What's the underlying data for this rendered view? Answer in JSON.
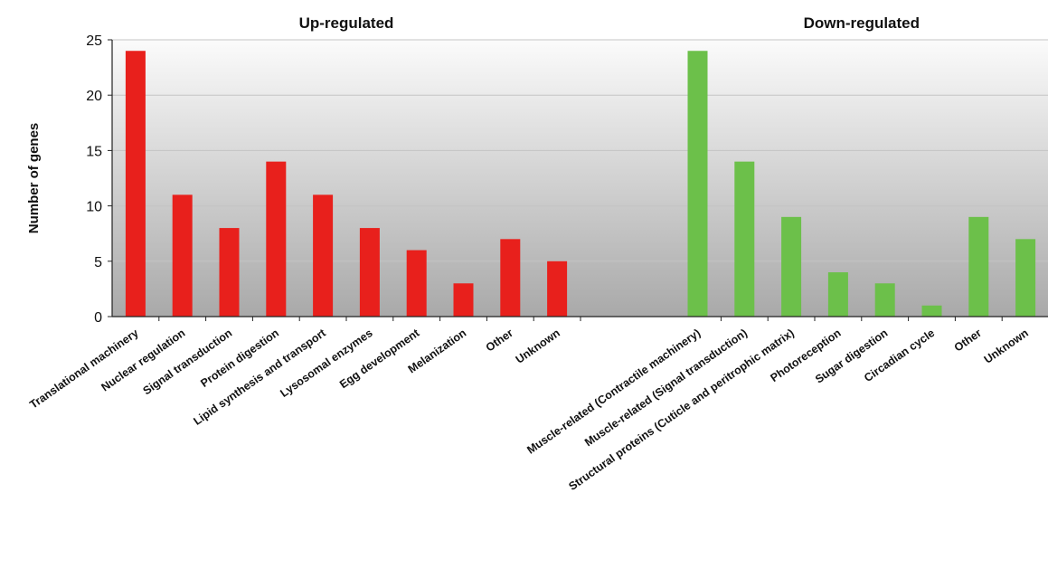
{
  "chart_data": {
    "type": "bar",
    "ylabel": "Number of genes",
    "ylim": [
      0,
      25
    ],
    "yticks": [
      0,
      5,
      10,
      15,
      20,
      25
    ],
    "grid": true,
    "background": "vertical gradient light-to-dark gray",
    "groups": [
      {
        "title": "Up-regulated",
        "color": "#e8201c",
        "categories": [
          "Translational machinery",
          "Nuclear regulation",
          "Signal transduction",
          "Protein digestion",
          "Lipid synthesis and transport",
          "Lysosomal enzymes",
          "Egg development",
          "Melanization",
          "Other",
          "Unknown"
        ],
        "values": [
          24,
          11,
          8,
          14,
          11,
          8,
          6,
          3,
          7,
          5
        ]
      },
      {
        "title": "Down-regulated",
        "color": "#6cc04a",
        "categories": [
          "Muscle-related (Contractile machinery)",
          "Muscle-related (Signal transduction)",
          "Structural proteins (Cuticle and peritrophic matrix)",
          "Photoreception",
          "Sugar digestion",
          "Circadian cycle",
          "Other",
          "Unknown"
        ],
        "values": [
          24,
          14,
          9,
          4,
          3,
          1,
          9,
          7
        ]
      }
    ]
  }
}
